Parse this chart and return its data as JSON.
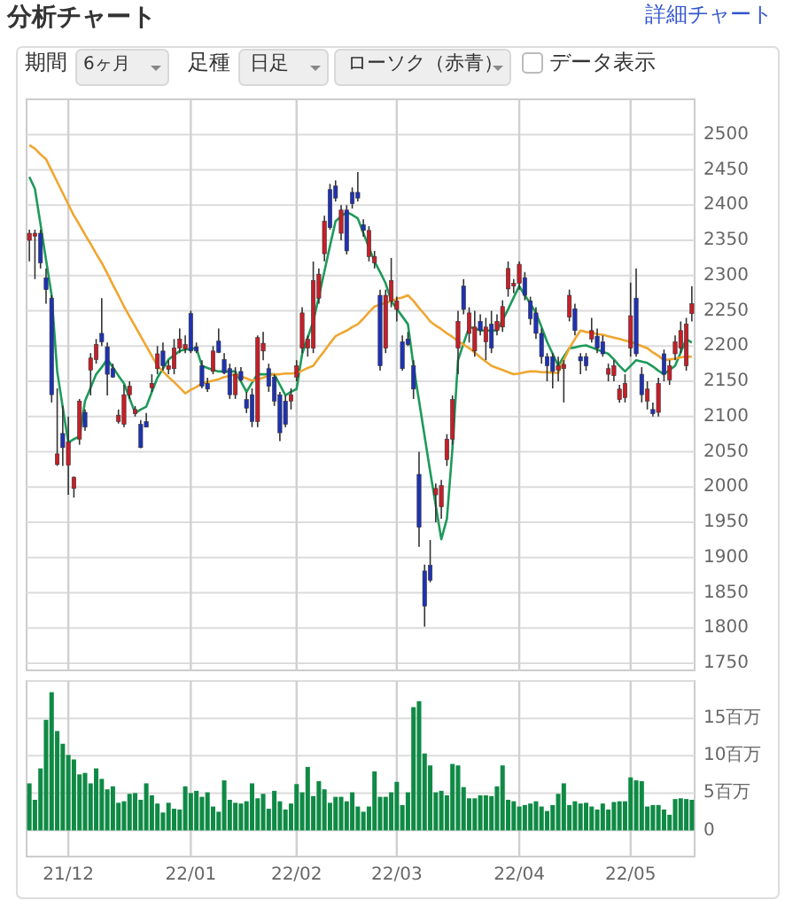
{
  "chart_data": [
    {
      "type": "candlestick",
      "title": "分析チャート",
      "annotations": [
        "詳細チャート",
        "期間",
        "6ヶ月",
        "足種",
        "日足",
        "ローソク（赤青）",
        "データ表示"
      ],
      "ohlc": [
        [
          2350,
          2365,
          2320,
          2360
        ],
        [
          2356,
          2365,
          2295,
          2360
        ],
        [
          2360,
          2365,
          2310,
          2318
        ],
        [
          2297,
          2310,
          2260,
          2280
        ],
        [
          2268,
          2272,
          2120,
          2131
        ],
        [
          2032,
          2140,
          2030,
          2047
        ],
        [
          2076,
          2115,
          2030,
          2056
        ],
        [
          2031,
          2100,
          1989,
          2064
        ],
        [
          1998,
          2015,
          1985,
          2014
        ],
        [
          2068,
          2125,
          2060,
          2122
        ],
        [
          2106,
          2110,
          2080,
          2085
        ],
        [
          2166,
          2190,
          2130,
          2183
        ],
        [
          2181,
          2210,
          2175,
          2202
        ],
        [
          2218,
          2268,
          2200,
          2206
        ],
        [
          2199,
          2205,
          2130,
          2160
        ],
        [
          2168,
          2175,
          2155,
          2156
        ],
        [
          2093,
          2110,
          2090,
          2102
        ],
        [
          2089,
          2145,
          2085,
          2131
        ],
        [
          2131,
          2150,
          2125,
          2143
        ],
        [
          2104,
          2115,
          2100,
          2110
        ],
        [
          2089,
          2095,
          2055,
          2056
        ],
        [
          2093,
          2105,
          2085,
          2085
        ],
        [
          2141,
          2160,
          2135,
          2147
        ],
        [
          2168,
          2200,
          2160,
          2189
        ],
        [
          2193,
          2205,
          2165,
          2172
        ],
        [
          2167,
          2180,
          2160,
          2172
        ],
        [
          2168,
          2210,
          2160,
          2197
        ],
        [
          2197,
          2225,
          2190,
          2210
        ],
        [
          2196,
          2215,
          2190,
          2202
        ],
        [
          2246,
          2250,
          2190,
          2193
        ],
        [
          2199,
          2205,
          2190,
          2193
        ],
        [
          2172,
          2180,
          2140,
          2143
        ],
        [
          2147,
          2155,
          2135,
          2139
        ],
        [
          2164,
          2200,
          2160,
          2193
        ],
        [
          2207,
          2225,
          2190,
          2191
        ],
        [
          2181,
          2190,
          2160,
          2162
        ],
        [
          2168,
          2175,
          2125,
          2131
        ],
        [
          2131,
          2170,
          2125,
          2160
        ],
        [
          2164,
          2170,
          2150,
          2152
        ],
        [
          2124,
          2135,
          2105,
          2112
        ],
        [
          2131,
          2140,
          2085,
          2093
        ],
        [
          2093,
          2215,
          2085,
          2212
        ],
        [
          2193,
          2220,
          2180,
          2204
        ],
        [
          2168,
          2175,
          2135,
          2143
        ],
        [
          2156,
          2160,
          2115,
          2122
        ],
        [
          2131,
          2135,
          2065,
          2077
        ],
        [
          2122,
          2130,
          2085,
          2089
        ],
        [
          2122,
          2140,
          2110,
          2131
        ],
        [
          2156,
          2180,
          2150,
          2172
        ],
        [
          2197,
          2255,
          2190,
          2247
        ],
        [
          2197,
          2215,
          2185,
          2210
        ],
        [
          2197,
          2320,
          2190,
          2293
        ],
        [
          2268,
          2310,
          2260,
          2302
        ],
        [
          2331,
          2385,
          2320,
          2377
        ],
        [
          2422,
          2430,
          2365,
          2368
        ],
        [
          2427,
          2435,
          2405,
          2410
        ],
        [
          2360,
          2400,
          2350,
          2393
        ],
        [
          2393,
          2400,
          2330,
          2335
        ],
        [
          2418,
          2425,
          2395,
          2402
        ],
        [
          2418,
          2447,
          2405,
          2410
        ],
        [
          2372,
          2380,
          2355,
          2364
        ],
        [
          2327,
          2370,
          2320,
          2364
        ],
        [
          2318,
          2335,
          2310,
          2327
        ],
        [
          2272,
          2280,
          2165,
          2172
        ],
        [
          2197,
          2280,
          2190,
          2272
        ],
        [
          2264,
          2325,
          2255,
          2293
        ],
        [
          2252,
          2270,
          2235,
          2264
        ],
        [
          2206,
          2215,
          2165,
          2168
        ],
        [
          2210,
          2220,
          2200,
          2202
        ],
        [
          2172,
          2180,
          2125,
          2139
        ],
        [
          2018,
          2050,
          1915,
          1943
        ],
        [
          1881,
          1890,
          1802,
          1831
        ],
        [
          1889,
          1925,
          1865,
          1868
        ],
        [
          1989,
          2005,
          1950,
          1998
        ],
        [
          1972,
          2010,
          1955,
          2002
        ],
        [
          2039,
          2075,
          2030,
          2068
        ],
        [
          2068,
          2130,
          2060,
          2124
        ],
        [
          2197,
          2250,
          2160,
          2235
        ],
        [
          2285,
          2295,
          2245,
          2252
        ],
        [
          2218,
          2255,
          2205,
          2247
        ],
        [
          2193,
          2250,
          2185,
          2227
        ],
        [
          2235,
          2245,
          2215,
          2222
        ],
        [
          2206,
          2240,
          2180,
          2227
        ],
        [
          2231,
          2250,
          2190,
          2197
        ],
        [
          2222,
          2245,
          2215,
          2235
        ],
        [
          2227,
          2265,
          2220,
          2256
        ],
        [
          2281,
          2320,
          2270,
          2310
        ],
        [
          2285,
          2295,
          2275,
          2289
        ],
        [
          2289,
          2320,
          2280,
          2316
        ],
        [
          2297,
          2305,
          2265,
          2272
        ],
        [
          2264,
          2270,
          2230,
          2239
        ],
        [
          2247,
          2255,
          2210,
          2218
        ],
        [
          2218,
          2225,
          2175,
          2185
        ],
        [
          2185,
          2190,
          2150,
          2172
        ],
        [
          2185,
          2190,
          2140,
          2164
        ],
        [
          2166,
          2185,
          2150,
          2172
        ],
        [
          2168,
          2180,
          2120,
          2174
        ],
        [
          2241,
          2280,
          2235,
          2272
        ],
        [
          2253,
          2260,
          2215,
          2222
        ],
        [
          2185,
          2190,
          2160,
          2179
        ],
        [
          2185,
          2190,
          2165,
          2172
        ],
        [
          2210,
          2240,
          2205,
          2222
        ],
        [
          2214,
          2225,
          2190,
          2197
        ],
        [
          2206,
          2215,
          2185,
          2189
        ],
        [
          2160,
          2175,
          2150,
          2168
        ],
        [
          2158,
          2180,
          2150,
          2172
        ],
        [
          2124,
          2145,
          2120,
          2139
        ],
        [
          2127,
          2160,
          2120,
          2147
        ],
        [
          2197,
          2290,
          2185,
          2243
        ],
        [
          2268,
          2310,
          2185,
          2189
        ],
        [
          2160,
          2170,
          2120,
          2131
        ],
        [
          2122,
          2150,
          2110,
          2139
        ],
        [
          2110,
          2120,
          2100,
          2104
        ],
        [
          2106,
          2155,
          2100,
          2147
        ],
        [
          2189,
          2195,
          2150,
          2160
        ],
        [
          2152,
          2180,
          2145,
          2172
        ],
        [
          2189,
          2215,
          2180,
          2206
        ],
        [
          2197,
          2235,
          2190,
          2222
        ],
        [
          2172,
          2240,
          2165,
          2231
        ],
        [
          2246,
          2285,
          2235,
          2260
        ]
      ],
      "colors": [
        "#c81e28",
        "#c81e28",
        "#1e32b4",
        "#1e32b4",
        "#1e32b4",
        "#c81e28",
        "#1e32b4",
        "#c81e28",
        "#c81e28",
        "#c81e28",
        "#1e32b4",
        "#c81e28",
        "#c81e28",
        "#1e32b4",
        "#1e32b4",
        "#1e32b4",
        "#c81e28",
        "#c81e28",
        "#c81e28",
        "#c81e28",
        "#1e32b4",
        "#1e32b4",
        "#c81e28",
        "#c81e28",
        "#1e32b4",
        "#c81e28",
        "#c81e28",
        "#c81e28",
        "#c81e28",
        "#1e32b4",
        "#1e32b4",
        "#1e32b4",
        "#1e32b4",
        "#c81e28",
        "#1e32b4",
        "#1e32b4",
        "#1e32b4",
        "#c81e28",
        "#1e32b4",
        "#1e32b4",
        "#1e32b4",
        "#c81e28",
        "#c81e28",
        "#1e32b4",
        "#1e32b4",
        "#1e32b4",
        "#1e32b4",
        "#c81e28",
        "#c81e28",
        "#c81e28",
        "#c81e28",
        "#c81e28",
        "#c81e28",
        "#c81e28",
        "#1e32b4",
        "#1e32b4",
        "#c81e28",
        "#1e32b4",
        "#1e32b4",
        "#1e32b4",
        "#1e32b4",
        "#c81e28",
        "#c81e28",
        "#1e32b4",
        "#c81e28",
        "#c81e28",
        "#c81e28",
        "#1e32b4",
        "#1e32b4",
        "#1e32b4",
        "#1e32b4",
        "#1e32b4",
        "#1e32b4",
        "#c81e28",
        "#c81e28",
        "#c81e28",
        "#c81e28",
        "#c81e28",
        "#1e32b4",
        "#c81e28",
        "#c81e28",
        "#1e32b4",
        "#c81e28",
        "#1e32b4",
        "#c81e28",
        "#c81e28",
        "#c81e28",
        "#c81e28",
        "#c81e28",
        "#1e32b4",
        "#1e32b4",
        "#1e32b4",
        "#1e32b4",
        "#1e32b4",
        "#1e32b4",
        "#c81e28",
        "#c81e28",
        "#c81e28",
        "#1e32b4",
        "#1e32b4",
        "#1e32b4",
        "#c81e28",
        "#1e32b4",
        "#1e32b4",
        "#c81e28",
        "#c81e28",
        "#c81e28",
        "#c81e28",
        "#c81e28",
        "#1e32b4",
        "#1e32b4",
        "#c81e28",
        "#1e32b4",
        "#c81e28",
        "#1e32b4",
        "#c81e28",
        "#c81e28",
        "#c81e28",
        "#c81e28",
        "#c81e28"
      ],
      "series": [
        {
          "type": "line",
          "color": "#1e9a5a",
          "values": [
            2440,
            2423,
            2373,
            2322,
            2272,
            2164,
            2113,
            2063,
            2068,
            2072,
            2122,
            2141,
            2160,
            2170,
            2181,
            2170,
            2158,
            2147,
            2126,
            2105,
            2110,
            2114,
            2135,
            2155,
            2168,
            2181,
            2187,
            2193,
            2195,
            2196,
            2197,
            2172,
            2169,
            2166,
            2164,
            2164,
            2164,
            2164,
            2150,
            2135,
            2148,
            2160,
            2160,
            2160,
            2160,
            2145,
            2130,
            2135,
            2139,
            2189,
            2212,
            2235,
            2270,
            2306,
            2342,
            2377,
            2384,
            2390,
            2386,
            2381,
            2360,
            2340,
            2320,
            2305,
            2289,
            2264,
            2253,
            2242,
            2231,
            2172,
            2122,
            2072,
            2022,
            1974,
            1926,
            1955,
            2055,
            2180,
            2204,
            2227,
            2225,
            2222,
            2222,
            2222,
            2222,
            2237,
            2252,
            2269,
            2285,
            2272,
            2260,
            2247,
            2227,
            2206,
            2189,
            2172,
            2185,
            2197,
            2198,
            2200,
            2201,
            2198,
            2195,
            2192,
            2189,
            2181,
            2172,
            2164,
            2172,
            2180,
            2178,
            2176,
            2171,
            2165,
            2160,
            2166,
            2172,
            2191,
            2210,
            2205
          ]
        },
        {
          "type": "line",
          "color": "#f0a630",
          "values": [
            2485,
            2480,
            2472,
            2465,
            2449,
            2433,
            2417,
            2401,
            2385,
            2372,
            2358,
            2345,
            2331,
            2318,
            2303,
            2287,
            2272,
            2256,
            2242,
            2228,
            2214,
            2200,
            2186,
            2172,
            2164,
            2156,
            2149,
            2141,
            2133,
            2138,
            2142,
            2147,
            2149,
            2151,
            2153,
            2156,
            2158,
            2160,
            2157,
            2154,
            2151,
            2153,
            2155,
            2158,
            2160,
            2160,
            2161,
            2161,
            2162,
            2165,
            2169,
            2172,
            2183,
            2193,
            2204,
            2214,
            2218,
            2222,
            2227,
            2231,
            2239,
            2248,
            2256,
            2259,
            2261,
            2264,
            2267,
            2269,
            2272,
            2264,
            2254,
            2245,
            2235,
            2229,
            2224,
            2218,
            2213,
            2207,
            2202,
            2197,
            2191,
            2184,
            2178,
            2172,
            2169,
            2166,
            2163,
            2160,
            2161,
            2163,
            2164,
            2164,
            2163,
            2163,
            2162,
            2162,
            2180,
            2197,
            2210,
            2222,
            2220,
            2219,
            2217,
            2216,
            2214,
            2212,
            2210,
            2208,
            2206,
            2203,
            2200,
            2197,
            2191,
            2186,
            2180,
            2181,
            2182,
            2184,
            2185,
            2185
          ]
        }
      ],
      "ylim": [
        1740,
        2550
      ],
      "yticks": [
        1750,
        1800,
        1850,
        1900,
        1950,
        2000,
        2050,
        2100,
        2150,
        2200,
        2250,
        2300,
        2350,
        2400,
        2450,
        2500
      ],
      "grid": true,
      "tick_labels": "y"
    },
    {
      "type": "bar",
      "color": "#0f8a45",
      "categories": [
        null,
        null,
        null,
        null,
        null,
        null,
        null,
        "21/12",
        null,
        null,
        null,
        null,
        null,
        null,
        null,
        null,
        null,
        null,
        null,
        null,
        null,
        null,
        null,
        null,
        null,
        null,
        null,
        null,
        null,
        "22/01",
        null,
        null,
        null,
        null,
        null,
        null,
        null,
        null,
        null,
        null,
        null,
        null,
        null,
        null,
        null,
        null,
        null,
        null,
        "22/02",
        null,
        null,
        null,
        null,
        null,
        null,
        null,
        null,
        null,
        null,
        null,
        null,
        null,
        null,
        null,
        null,
        null,
        "22/03",
        null,
        null,
        null,
        null,
        null,
        null,
        null,
        null,
        null,
        null,
        null,
        null,
        null,
        null,
        null,
        null,
        null,
        null,
        null,
        null,
        null,
        "22/04",
        null,
        null,
        null,
        null,
        null,
        null,
        null,
        null,
        null,
        null,
        null,
        null,
        null,
        null,
        null,
        null,
        null,
        null,
        null,
        "22/05",
        null,
        null,
        null,
        null,
        null,
        null,
        null,
        null,
        null,
        null,
        null
      ],
      "values": [
        6.3,
        4.1,
        8.3,
        14.8,
        18.5,
        13.3,
        11.6,
        10.1,
        9.5,
        7.5,
        7.7,
        6.3,
        8.3,
        6.9,
        5.5,
        5.9,
        3.7,
        3.9,
        4.9,
        5.0,
        4.1,
        6.3,
        4.7,
        3.6,
        2.4,
        3.7,
        2.9,
        2.8,
        5.9,
        5.0,
        5.3,
        4.5,
        5.1,
        3.2,
        2.5,
        6.7,
        4.1,
        3.7,
        3.6,
        3.9,
        6.3,
        4.3,
        4.9,
        2.9,
        5.3,
        3.9,
        2.8,
        3.6,
        6.2,
        5.1,
        8.5,
        4.6,
        6.6,
        5.5,
        3.7,
        4.5,
        4.5,
        3.9,
        5.1,
        3.2,
        2.5,
        3.2,
        7.9,
        4.5,
        4.5,
        5.1,
        6.5,
        3.4,
        5.1,
        16.5,
        17.3,
        10.3,
        8.7,
        5.1,
        5.3,
        4.7,
        8.9,
        8.7,
        5.8,
        4.3,
        4.3,
        4.7,
        4.7,
        4.6,
        5.9,
        8.7,
        4.1,
        3.9,
        3.2,
        3.4,
        3.6,
        3.9,
        3.2,
        2.6,
        3.4,
        4.9,
        6.3,
        3.4,
        3.9,
        3.6,
        3.7,
        3.2,
        2.8,
        3.6,
        2.8,
        3.8,
        3.9,
        3.9,
        7.1,
        6.7,
        6.6,
        3.2,
        3.4,
        3.4,
        2.8,
        2.1,
        4.2,
        4.3,
        4.2,
        4.1
      ],
      "ylim": [
        -3.5,
        20
      ],
      "yticks": [
        0,
        {
          "value": 5,
          "label": "5百万"
        },
        {
          "value": 10,
          "label": "10百万"
        },
        {
          "value": 15,
          "label": "15百万"
        },
        {
          "value": 20,
          "label": null
        }
      ],
      "grid": true
    }
  ]
}
